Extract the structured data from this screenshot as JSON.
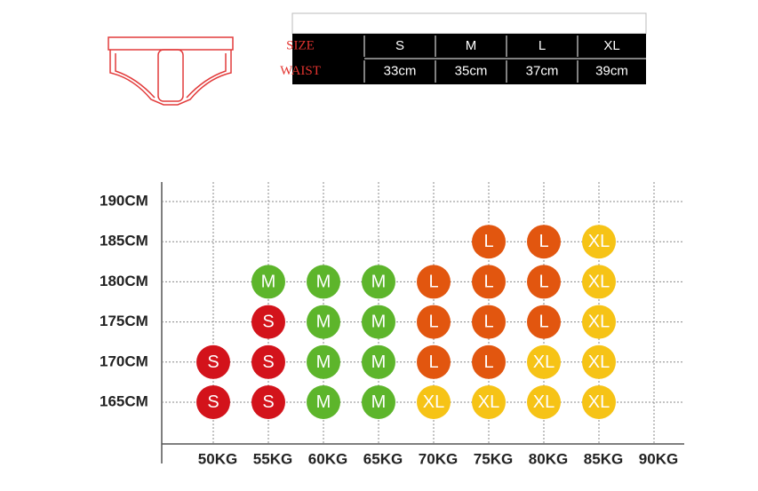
{
  "size_table": {
    "header": [
      "SIZE",
      "S",
      "M",
      "L",
      "XL"
    ],
    "rows": [
      [
        "WAIST",
        "33cm",
        "35cm",
        "37cm",
        "39cm"
      ]
    ]
  },
  "chart": {
    "weights": [
      "50KG",
      "55KG",
      "60KG",
      "65KG",
      "70KG",
      "75KG",
      "80KG",
      "85KG",
      "90KG"
    ],
    "heights": [
      "190CM",
      "185CM",
      "180CM",
      "175CM",
      "170CM",
      "165CM"
    ],
    "cells": [
      [
        null,
        null,
        null,
        null,
        null,
        null,
        null,
        null,
        null
      ],
      [
        null,
        null,
        null,
        null,
        null,
        "L",
        "L",
        "XL",
        null
      ],
      [
        null,
        "M",
        "M",
        "M",
        "L",
        "L",
        "L",
        "XL",
        null
      ],
      [
        null,
        "S",
        "M",
        "M",
        "L",
        "L",
        "L",
        "XL",
        null
      ],
      [
        "S",
        "S",
        "M",
        "M",
        "L",
        "L",
        "XL",
        "XL",
        null
      ],
      [
        "S",
        "S",
        "M",
        "M",
        "XL",
        "XL",
        "XL",
        "XL",
        null
      ]
    ],
    "colors": {
      "S": "#d3131b",
      "M": "#5db52b",
      "L": "#e2560f",
      "XL": "#f6c316"
    }
  }
}
